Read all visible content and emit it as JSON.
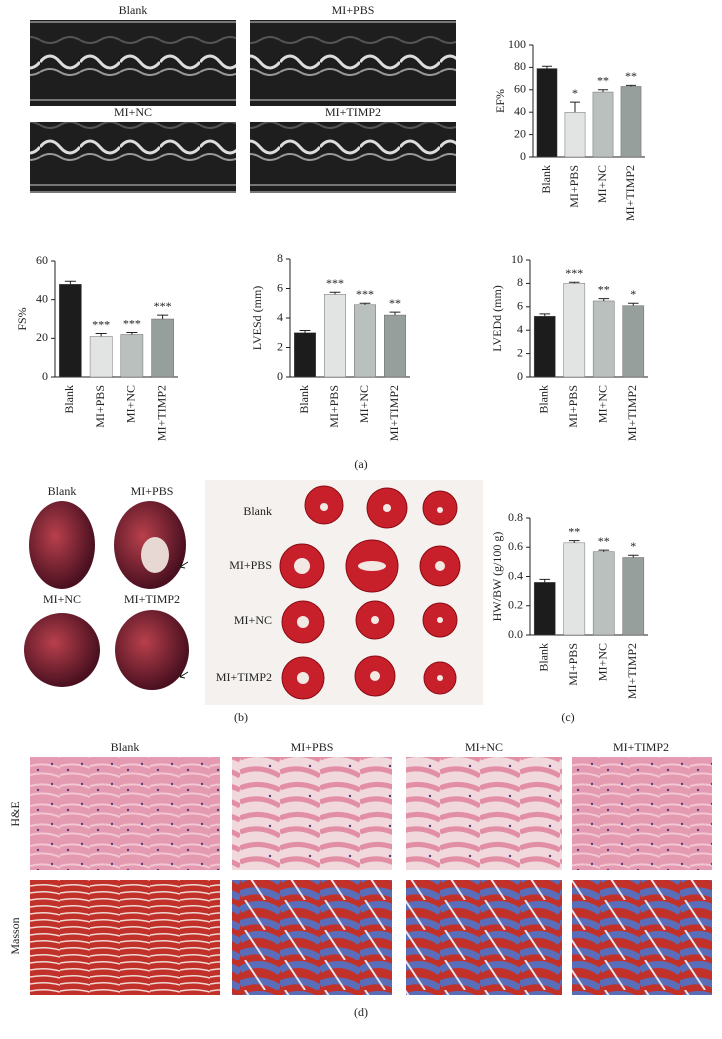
{
  "chart_data": [
    {
      "type": "bar",
      "ylabel": "EF%",
      "categories": [
        "Blank",
        "MI+PBS",
        "MI+NC",
        "MI+TIMP2"
      ],
      "values": [
        79,
        40,
        58,
        63
      ],
      "errors": [
        2,
        9,
        2,
        1
      ],
      "annotations": [
        null,
        "*",
        "**",
        "**"
      ],
      "colors": [
        "#1c1c1c",
        "#e1e4e2",
        "#bac0be",
        "#979f9c"
      ],
      "ylim": [
        0,
        100
      ],
      "yticks": [
        0,
        20,
        40,
        60,
        80,
        100
      ]
    },
    {
      "type": "bar",
      "ylabel": "FS%",
      "categories": [
        "Blank",
        "MI+PBS",
        "MI+NC",
        "MI+TIMP2"
      ],
      "values": [
        48,
        21,
        22,
        30
      ],
      "errors": [
        1.5,
        1.5,
        1,
        2
      ],
      "annotations": [
        null,
        "***",
        "***",
        "***"
      ],
      "colors": [
        "#1c1c1c",
        "#e1e4e2",
        "#bac0be",
        "#979f9c"
      ],
      "ylim": [
        0,
        60
      ],
      "yticks": [
        0,
        20,
        40,
        60
      ]
    },
    {
      "type": "bar",
      "ylabel": "LVESd (mm)",
      "categories": [
        "Blank",
        "MI+PBS",
        "MI+NC",
        "MI+TIMP2"
      ],
      "values": [
        3.0,
        5.6,
        4.9,
        4.2
      ],
      "errors": [
        0.15,
        0.15,
        0.1,
        0.2
      ],
      "annotations": [
        null,
        "***",
        "***",
        "**"
      ],
      "colors": [
        "#1c1c1c",
        "#e1e4e2",
        "#bac0be",
        "#979f9c"
      ],
      "ylim": [
        0,
        8
      ],
      "yticks": [
        0,
        2,
        4,
        6,
        8
      ]
    },
    {
      "type": "bar",
      "ylabel": "LVEDd (mm)",
      "categories": [
        "Blank",
        "MI+PBS",
        "MI+NC",
        "MI+TIMP2"
      ],
      "values": [
        5.2,
        8.0,
        6.5,
        6.1
      ],
      "errors": [
        0.2,
        0.1,
        0.2,
        0.2
      ],
      "annotations": [
        null,
        "***",
        "**",
        "*"
      ],
      "colors": [
        "#1c1c1c",
        "#e1e4e2",
        "#bac0be",
        "#979f9c"
      ],
      "ylim": [
        0,
        10
      ],
      "yticks": [
        0,
        2,
        4,
        6,
        8,
        10
      ]
    },
    {
      "type": "bar",
      "ylabel": "HW/BW (g/100 g)",
      "categories": [
        "Blank",
        "MI+PBS",
        "MI+NC",
        "MI+TIMP2"
      ],
      "values": [
        0.36,
        0.63,
        0.57,
        0.53
      ],
      "errors": [
        0.02,
        0.015,
        0.01,
        0.015
      ],
      "annotations": [
        null,
        "**",
        "**",
        "*"
      ],
      "colors": [
        "#1c1c1c",
        "#e1e4e2",
        "#bac0be",
        "#979f9c"
      ],
      "ylim": [
        0,
        0.8
      ],
      "yticks": [
        {
          "value": 0,
          "label": "0.0"
        },
        0.2,
        0.4,
        0.6,
        0.8
      ]
    }
  ],
  "echo_labels": [
    "Blank",
    "MI+PBS",
    "MI+NC",
    "MI+TIMP2"
  ],
  "heart_labels": [
    "Blank",
    "MI+PBS",
    "MI+NC",
    "MI+TIMP2"
  ],
  "slice_labels": [
    "Blank",
    "MI+PBS",
    "MI+NC",
    "MI+TIMP2"
  ],
  "histology_columns": [
    "Blank",
    "MI+PBS",
    "MI+NC",
    "MI+TIMP2"
  ],
  "histology_rows": [
    "H&E",
    "Masson"
  ],
  "panel_labels": [
    "(a)",
    "(b)",
    "(c)",
    "(d)"
  ]
}
